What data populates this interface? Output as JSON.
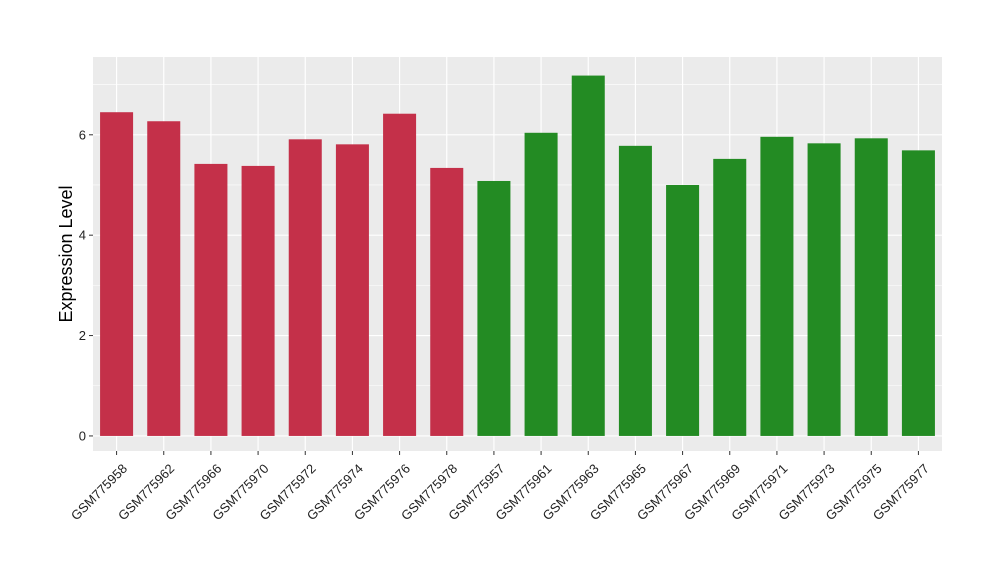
{
  "chart_data": {
    "type": "bar",
    "title": "",
    "xlabel": "",
    "ylabel": "Expression Level",
    "ylim": [
      -0.3,
      7.55
    ],
    "yticks": [
      0,
      2,
      4,
      6
    ],
    "grid": true,
    "categories": [
      "GSM775958",
      "GSM775962",
      "GSM775966",
      "GSM775970",
      "GSM775972",
      "GSM775974",
      "GSM775976",
      "GSM775978",
      "GSM775957",
      "GSM775961",
      "GSM775963",
      "GSM775965",
      "GSM775967",
      "GSM775969",
      "GSM775971",
      "GSM775973",
      "GSM775975",
      "GSM775977"
    ],
    "values": [
      6.45,
      6.27,
      5.42,
      5.38,
      5.91,
      5.81,
      6.42,
      5.34,
      5.08,
      6.04,
      7.18,
      5.78,
      5.0,
      5.52,
      5.96,
      5.83,
      5.93,
      5.69
    ],
    "groups": [
      0,
      0,
      0,
      0,
      0,
      0,
      0,
      0,
      1,
      1,
      1,
      1,
      1,
      1,
      1,
      1,
      1,
      1
    ],
    "colors": {
      "group_0": "#c43049",
      "group_1": "#238b23",
      "panel": "#ebebeb",
      "grid": "#ffffff"
    }
  }
}
